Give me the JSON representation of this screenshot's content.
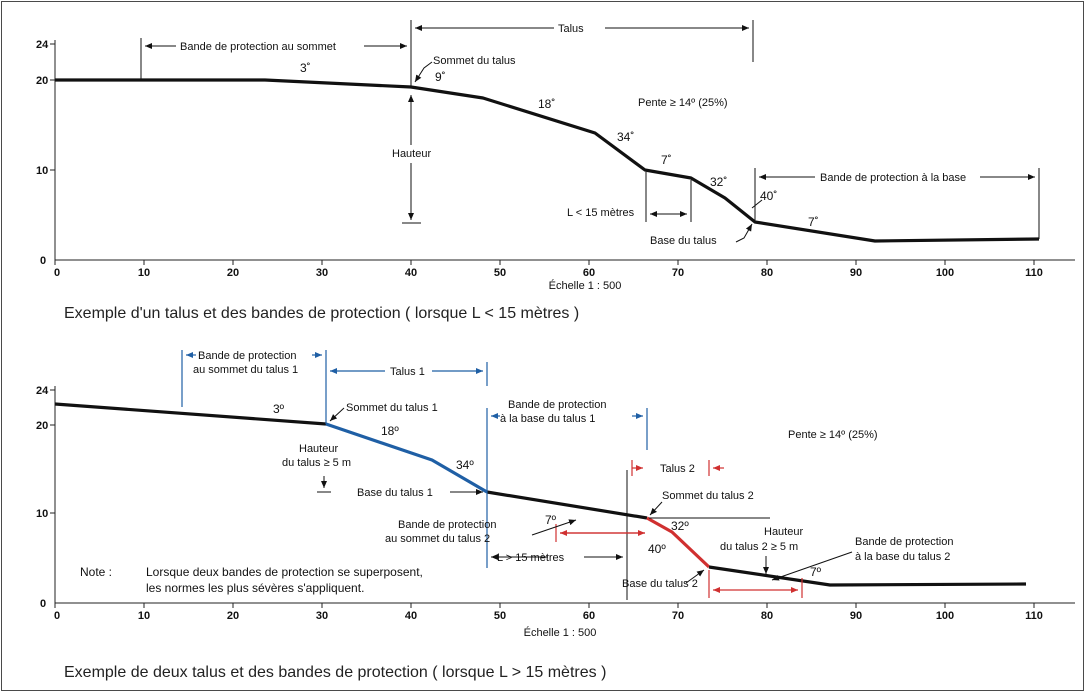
{
  "diagram1": {
    "y_ticks": [
      "24",
      "20",
      "10",
      "0"
    ],
    "x_ticks": [
      "0",
      "10",
      "20",
      "30",
      "40",
      "50",
      "60",
      "70",
      "80",
      "90",
      "100",
      "110"
    ],
    "scale": "Échelle 1 : 500",
    "caption": "Exemple d'un talus et des bandes de protection ( lorsque L < 15 mètres )",
    "labels": {
      "band_top": "Bande de protection au sommet",
      "talus": "Talus",
      "sommet": "Sommet du talus",
      "hauteur": "Hauteur",
      "pente": "Pente ≥ 14º (25%)",
      "band_base": "Bande de protection à la base",
      "l_lt": "L < 15 mètres",
      "base": "Base du talus"
    },
    "angles": [
      "3˚",
      "9˚",
      "18˚",
      "34˚",
      "7˚",
      "32˚",
      "40˚",
      "7˚"
    ]
  },
  "diagram2": {
    "y_ticks": [
      "24",
      "20",
      "10",
      "0"
    ],
    "x_ticks": [
      "0",
      "10",
      "20",
      "30",
      "40",
      "50",
      "60",
      "70",
      "80",
      "90",
      "100",
      "110"
    ],
    "scale": "Échelle 1 : 500",
    "caption": "Exemple de deux talus et des bandes de protection ( lorsque L > 15 mètres )",
    "labels": {
      "band_top1_a": "Bande de protection",
      "band_top1_b": "au sommet du talus 1",
      "talus1": "Talus 1",
      "sommet1": "Sommet du talus 1",
      "hauteur1_a": "Hauteur",
      "hauteur1_b": "du talus ≥ 5 m",
      "base1": "Base du talus 1",
      "band_base1_a": "Bande de protection",
      "band_base1_b": "à la base du talus 1",
      "pente": "Pente ≥ 14º (25%)",
      "talus2": "Talus 2",
      "sommet2": "Sommet du talus 2",
      "band_top2_a": "Bande de protection",
      "band_top2_b": "au sommet du talus 2",
      "hauteur2_a": "Hauteur",
      "hauteur2_b": "du talus 2 ≥ 5 m",
      "l_gt": "L > 15 mètres",
      "base2": "Base du talus 2",
      "band_base2_a": "Bande de protection",
      "band_base2_b": "à la base du talus 2",
      "note_label": "Note :",
      "note_line1": "Lorsque deux bandes de protection se superposent,",
      "note_line2": "les normes les plus sévères s'appliquent."
    },
    "angles": [
      "3º",
      "18º",
      "34º",
      "7º",
      "32º",
      "40º",
      "7º"
    ]
  },
  "colors": {
    "talus1": "#1f5fa5",
    "talus2": "#d03030",
    "ground": "#111111"
  }
}
